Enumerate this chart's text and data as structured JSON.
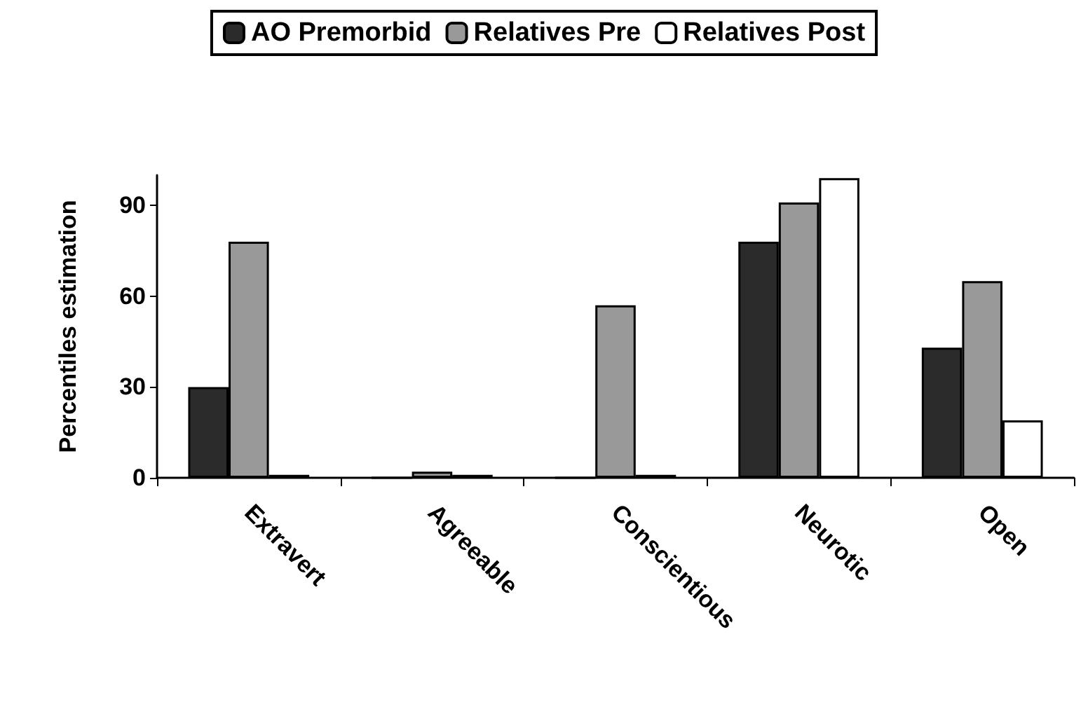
{
  "chart_data": {
    "type": "bar",
    "ylabel": "Percentiles estimation",
    "categories": [
      "Extravert",
      "Agreeable",
      "Conscientious",
      "Neurotic",
      "Open"
    ],
    "series": [
      {
        "name": "AO Premorbid",
        "color": "#2b2b2b",
        "values": [
          30,
          0,
          0,
          78,
          43
        ]
      },
      {
        "name": "Relatives Pre",
        "color": "#999999",
        "values": [
          78,
          2,
          57,
          91,
          65
        ]
      },
      {
        "name": "Relatives Post",
        "color": "#ffffff",
        "values": [
          1,
          1,
          1,
          99,
          19
        ]
      }
    ],
    "ylim": [
      0,
      100
    ],
    "yticks": [
      0,
      30,
      60,
      90
    ],
    "grid": false,
    "legend": "top"
  }
}
